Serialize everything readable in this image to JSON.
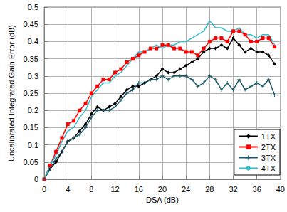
{
  "chart_data": {
    "type": "line",
    "x_label": "DSA (dB)",
    "y_label": "Uncalibrated Integrated Gain Error (dB)",
    "x": [
      0,
      1,
      2,
      3,
      4,
      5,
      6,
      7,
      8,
      9,
      10,
      11,
      12,
      13,
      14,
      15,
      16,
      17,
      18,
      19,
      20,
      21,
      22,
      23,
      24,
      25,
      26,
      27,
      28,
      29,
      30,
      31,
      32,
      33,
      34,
      35,
      36,
      37,
      38,
      39
    ],
    "series": [
      {
        "name": "1TX",
        "color": "#000000",
        "marker": "diamond",
        "values": [
          0,
          0.03,
          0.05,
          0.08,
          0.11,
          0.12,
          0.14,
          0.16,
          0.19,
          0.21,
          0.2,
          0.21,
          0.22,
          0.24,
          0.26,
          0.27,
          0.27,
          0.28,
          0.29,
          0.3,
          0.32,
          0.31,
          0.31,
          0.32,
          0.33,
          0.34,
          0.35,
          0.37,
          0.38,
          0.38,
          0.39,
          0.38,
          0.41,
          0.39,
          0.37,
          0.38,
          0.37,
          0.37,
          0.36,
          0.335
        ]
      },
      {
        "name": "2TX",
        "color": "#ff0000",
        "marker": "square",
        "values": [
          0,
          0.04,
          0.08,
          0.12,
          0.16,
          0.17,
          0.2,
          0.22,
          0.25,
          0.27,
          0.29,
          0.29,
          0.31,
          0.32,
          0.34,
          0.35,
          0.36,
          0.37,
          0.38,
          0.38,
          0.39,
          0.39,
          0.38,
          0.38,
          0.37,
          0.37,
          0.36,
          0.38,
          0.4,
          0.41,
          0.41,
          0.4,
          0.43,
          0.43,
          0.42,
          0.4,
          0.4,
          0.41,
          0.41,
          0.385
        ]
      },
      {
        "name": "3TX",
        "color": "#1f5c6b",
        "marker": "plus",
        "values": [
          0,
          0.03,
          0.06,
          0.08,
          0.11,
          0.12,
          0.13,
          0.15,
          0.18,
          0.2,
          0.2,
          0.2,
          0.21,
          0.23,
          0.25,
          0.26,
          0.28,
          0.28,
          0.29,
          0.29,
          0.3,
          0.29,
          0.3,
          0.3,
          0.3,
          0.29,
          0.27,
          0.28,
          0.3,
          0.29,
          0.26,
          0.28,
          0.26,
          0.29,
          0.26,
          0.27,
          0.28,
          0.27,
          0.29,
          0.245
        ]
      },
      {
        "name": "4TX",
        "color": "#33bbcc",
        "marker": "none",
        "values": [
          0,
          0.04,
          0.07,
          0.11,
          0.14,
          0.15,
          0.18,
          0.2,
          0.24,
          0.26,
          0.28,
          0.28,
          0.3,
          0.31,
          0.33,
          0.35,
          0.37,
          0.37,
          0.38,
          0.39,
          0.38,
          0.39,
          0.39,
          0.4,
          0.4,
          0.41,
          0.42,
          0.43,
          0.46,
          0.44,
          0.44,
          0.43,
          0.43,
          0.44,
          0.42,
          0.42,
          0.41,
          0.42,
          0.42,
          0.39
        ]
      }
    ],
    "xlim": [
      0,
      40
    ],
    "xticks": [
      0,
      4,
      8,
      12,
      16,
      20,
      24,
      28,
      32,
      36,
      40
    ],
    "ylim": [
      0,
      0.5
    ],
    "yticks": [
      0,
      0.05,
      0.1,
      0.15,
      0.2,
      0.25,
      0.3,
      0.35,
      0.4,
      0.45,
      0.5
    ],
    "grid": true,
    "legend": "lower right"
  }
}
